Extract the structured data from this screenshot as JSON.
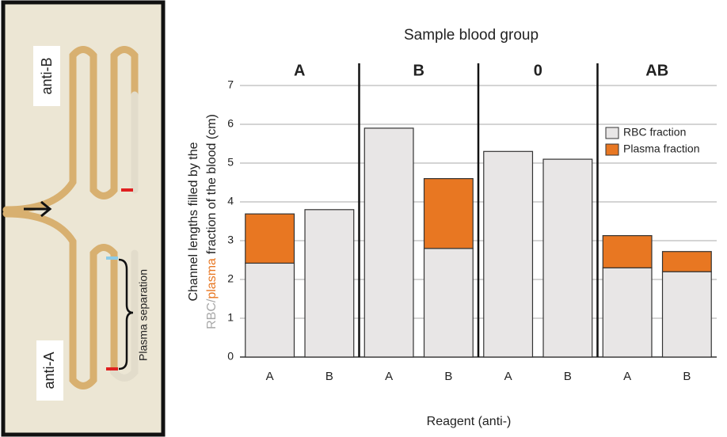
{
  "photo": {
    "labels": [
      "anti-B",
      "anti-A",
      "Plasma separation"
    ]
  },
  "chart_data": {
    "type": "stacked-bar",
    "title": "Sample blood group",
    "groups": [
      "A",
      "B",
      "0",
      "AB"
    ],
    "categories": [
      "A",
      "B",
      "A",
      "B",
      "A",
      "B",
      "A",
      "B"
    ],
    "series": [
      {
        "name": "RBC fraction",
        "color": "#e8e6e6",
        "values": [
          2.42,
          3.8,
          5.9,
          2.8,
          5.3,
          5.1,
          2.3,
          2.2
        ]
      },
      {
        "name": "Plasma fraction",
        "color": "#e87722",
        "values": [
          1.27,
          null,
          null,
          1.8,
          null,
          null,
          0.83,
          0.52
        ]
      }
    ],
    "ylabel": {
      "line1": "Channel lengths filled by the",
      "line2": [
        {
          "text": "RBC/",
          "color": "#a8a8a8"
        },
        {
          "text": "plasma",
          "color": "#e87722"
        },
        {
          "text": "fraction of the blood (cm)",
          "color": "#222222"
        }
      ]
    },
    "xlabel": "Reagent (anti-)",
    "ylim": [
      0,
      7
    ],
    "yticks": [
      0,
      1,
      2,
      3,
      4,
      5,
      6,
      7
    ],
    "grid": true,
    "legend": "upper right"
  }
}
